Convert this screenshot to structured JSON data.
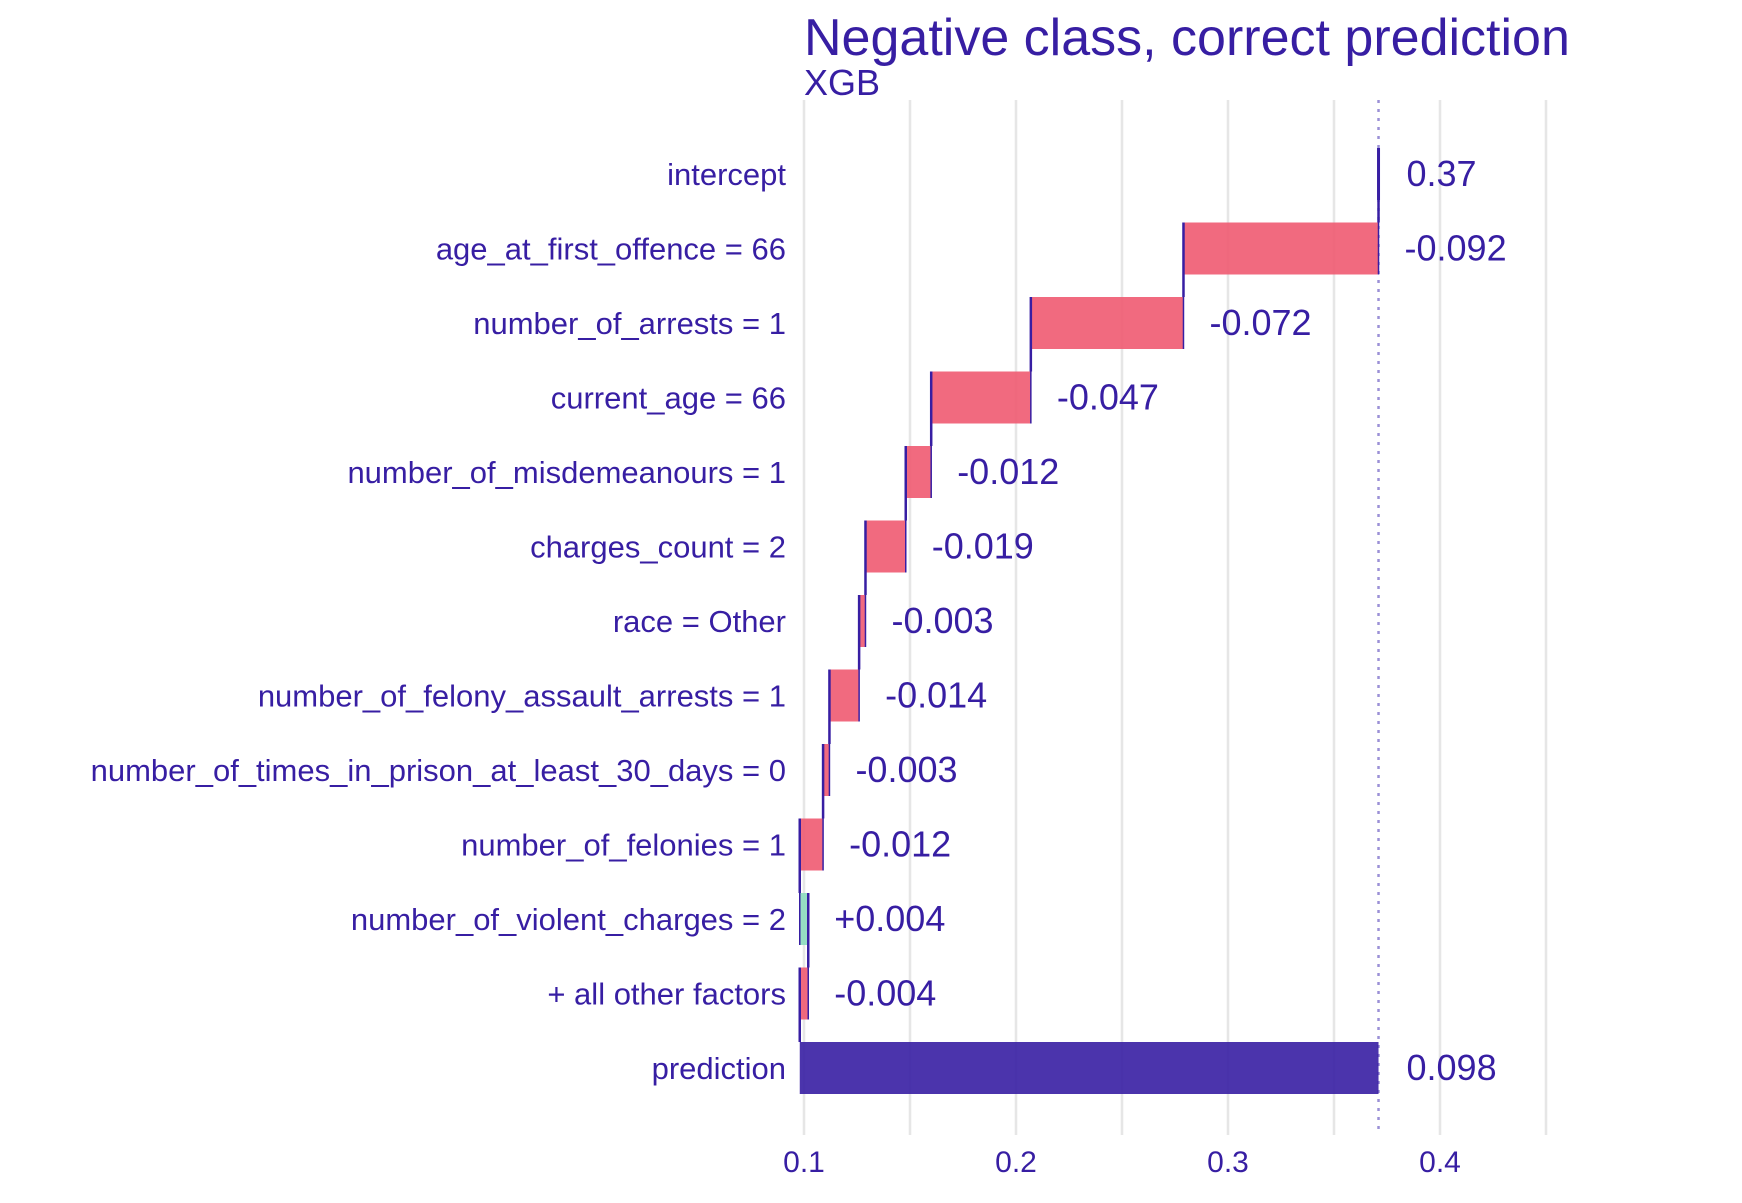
{
  "chart_data": {
    "type": "waterfall",
    "title": "Negative class, correct prediction",
    "subtitle": "XGB",
    "xlabel": "",
    "ylabel": "",
    "xlim": [
      0.1,
      0.45
    ],
    "x_ticks": [
      0.1,
      0.2,
      0.3,
      0.4
    ],
    "x_tick_labels": [
      "0.1",
      "0.2",
      "0.3",
      "0.4"
    ],
    "grid": true,
    "reference_line": 0.371,
    "colors": {
      "text": "#371ea3",
      "negative": "#f05a71",
      "positive": "#8bdcbe",
      "prediction": "#371ea3",
      "grid": "#e6e6e6",
      "connector": "#371ea3",
      "reference": "#9b90d6"
    },
    "rows": [
      {
        "label": "intercept",
        "kind": "intercept",
        "start": 0.371,
        "end": 0.371,
        "value_label": "0.37"
      },
      {
        "label": "age_at_first_offence = 66",
        "kind": "negative",
        "start": 0.371,
        "end": 0.279,
        "value_label": "-0.092"
      },
      {
        "label": "number_of_arrests = 1",
        "kind": "negative",
        "start": 0.279,
        "end": 0.207,
        "value_label": "-0.072"
      },
      {
        "label": "current_age = 66",
        "kind": "negative",
        "start": 0.207,
        "end": 0.16,
        "value_label": "-0.047"
      },
      {
        "label": "number_of_misdemeanours = 1",
        "kind": "negative",
        "start": 0.16,
        "end": 0.148,
        "value_label": "-0.012"
      },
      {
        "label": "charges_count = 2",
        "kind": "negative",
        "start": 0.148,
        "end": 0.129,
        "value_label": "-0.019"
      },
      {
        "label": "race = Other",
        "kind": "negative",
        "start": 0.129,
        "end": 0.126,
        "value_label": "-0.003"
      },
      {
        "label": "number_of_felony_assault_arrests = 1",
        "kind": "negative",
        "start": 0.126,
        "end": 0.112,
        "value_label": "-0.014"
      },
      {
        "label": "number_of_times_in_prison_at_least_30_days = 0",
        "kind": "negative",
        "start": 0.112,
        "end": 0.109,
        "value_label": "-0.003"
      },
      {
        "label": "number_of_felonies = 1",
        "kind": "negative",
        "start": 0.109,
        "end": 0.098,
        "value_label": "-0.012"
      },
      {
        "label": "number_of_violent_charges = 2",
        "kind": "positive",
        "start": 0.098,
        "end": 0.102,
        "value_label": "+0.004"
      },
      {
        "label": "+ all other factors",
        "kind": "negative",
        "start": 0.102,
        "end": 0.098,
        "value_label": "-0.004"
      },
      {
        "label": "prediction",
        "kind": "prediction",
        "start": 0.098,
        "end": 0.371,
        "value_label": "0.098"
      }
    ]
  }
}
